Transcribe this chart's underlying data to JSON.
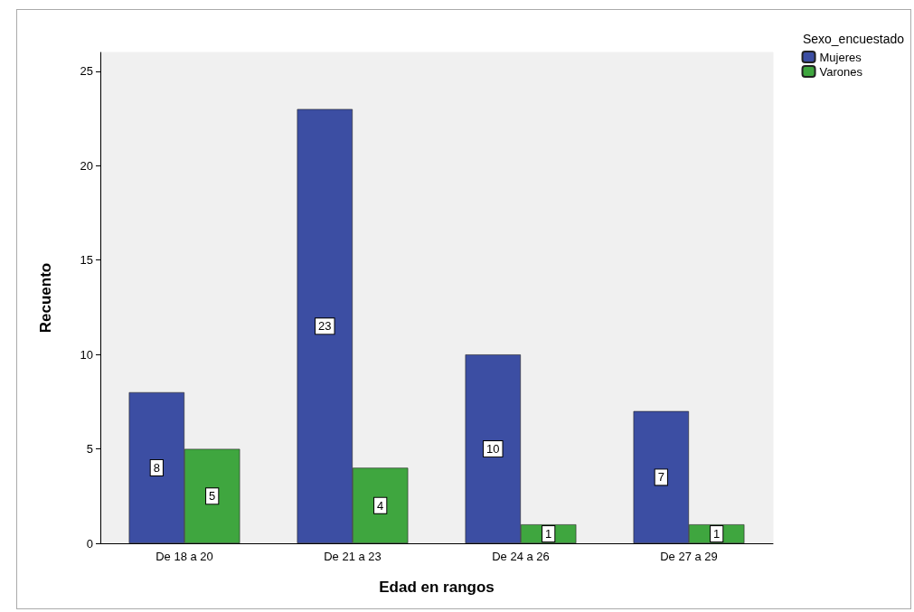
{
  "chart_data": {
    "type": "bar",
    "xlabel": "Edad en rangos",
    "ylabel": "Recuento",
    "legend_title": "Sexo_encuestado",
    "categories": [
      "De 18 a 20",
      "De 21 a 23",
      "De 24 a 26",
      "De 27 a 29"
    ],
    "series": [
      {
        "name": "Mujeres",
        "color": "#3c4ea3",
        "values": [
          8,
          23,
          10,
          7
        ]
      },
      {
        "name": "Varones",
        "color": "#3fa63f",
        "values": [
          5,
          4,
          1,
          1
        ]
      }
    ],
    "ylim": [
      0,
      26
    ],
    "yticks": [
      0,
      5,
      10,
      15,
      20,
      25
    ],
    "grid": false,
    "legend": "top right",
    "data_labels": true
  }
}
